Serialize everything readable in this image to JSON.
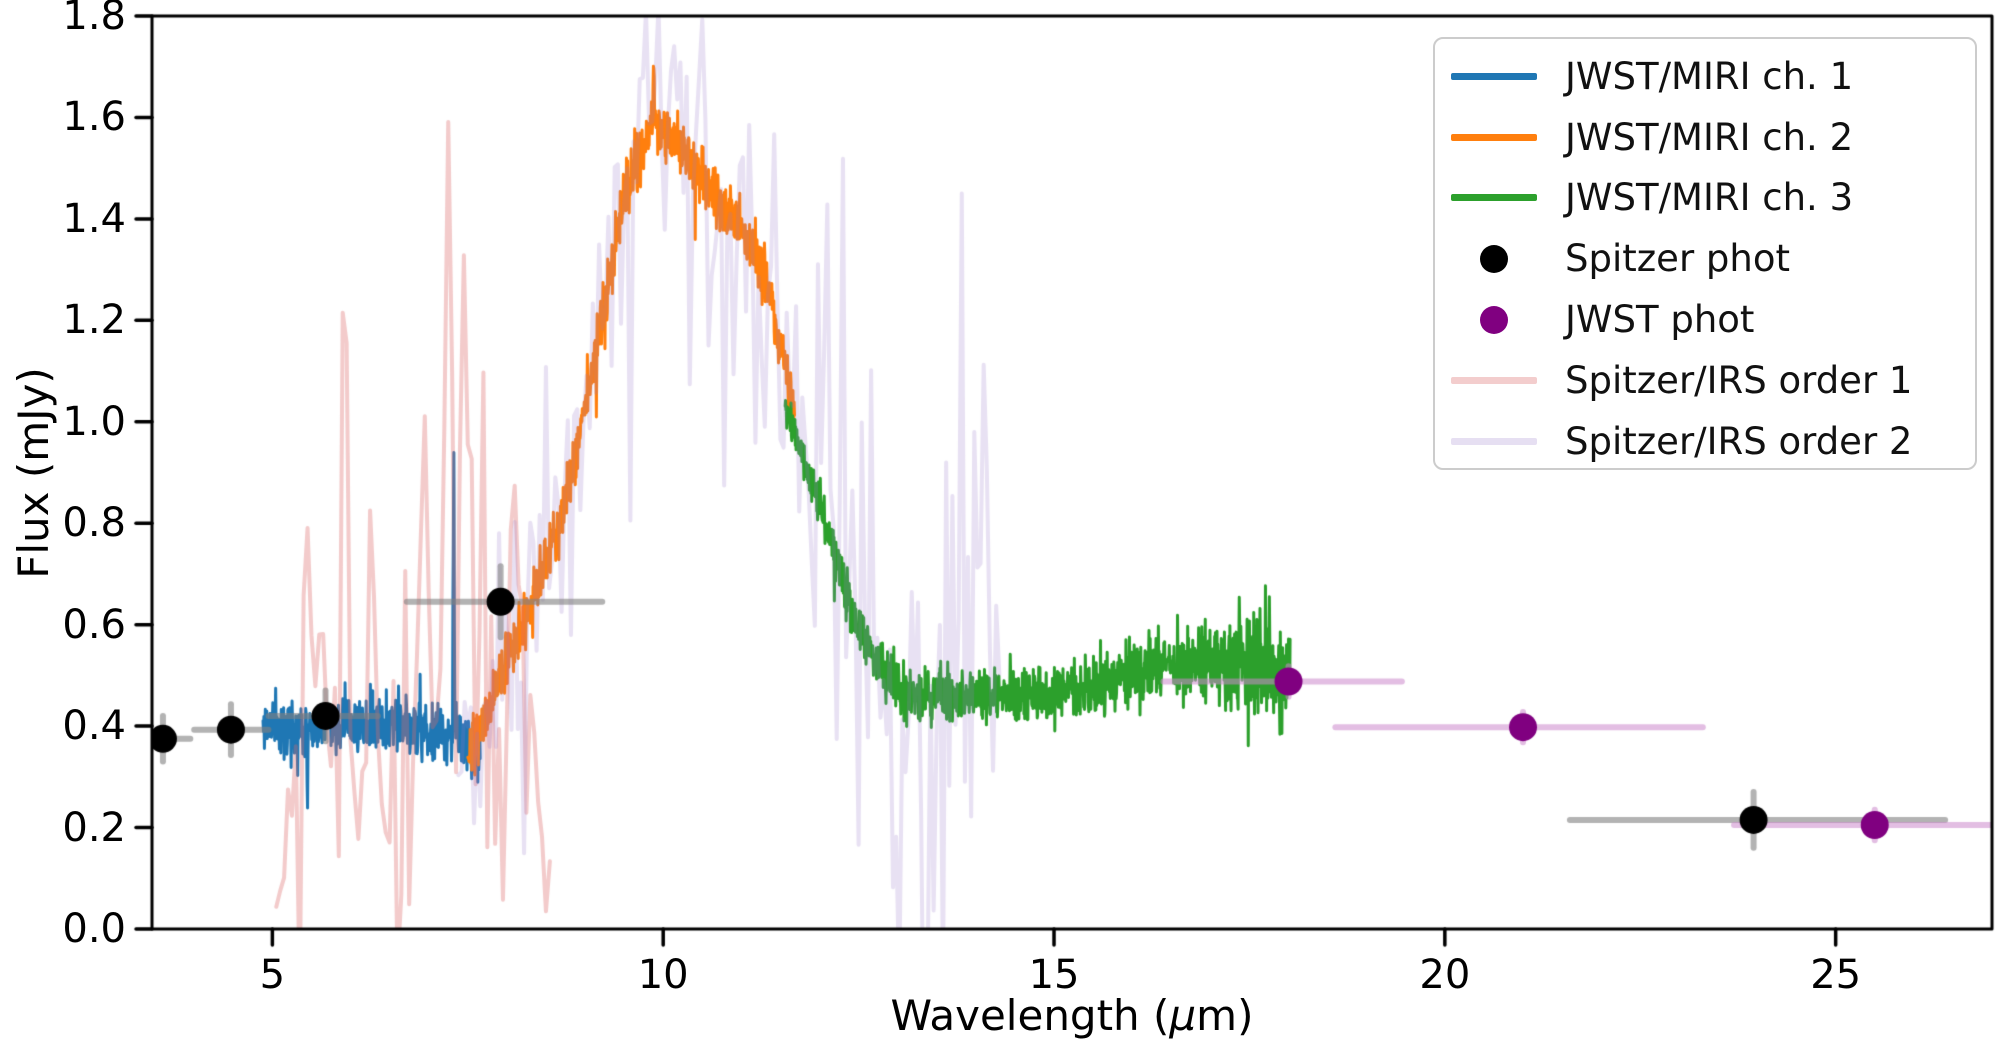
{
  "chart_data": {
    "type": "line",
    "title": "",
    "xlabel_prefix": "Wavelength (",
    "xlabel_mu": "μ",
    "xlabel_suffix": "m)",
    "ylabel": "Flux (mJy)",
    "xlim": [
      3.46,
      27.0
    ],
    "ylim": [
      0.0,
      1.8
    ],
    "grid": false,
    "legend_position": "upper right",
    "xticks": [
      "5",
      "10",
      "15",
      "20",
      "25"
    ],
    "xtick_values": [
      5,
      10,
      15,
      20,
      25
    ],
    "yticks": [
      "0.0",
      "0.2",
      "0.4",
      "0.6",
      "0.8",
      "1.0",
      "1.2",
      "1.4",
      "1.6",
      "1.8"
    ],
    "ytick_values": [
      0.0,
      0.2,
      0.4,
      0.6,
      0.8,
      1.0,
      1.2,
      1.4,
      1.6,
      1.8
    ],
    "spectra": [
      {
        "name": "JWST/MIRI ch. 1",
        "color": "#1f77b4",
        "range": [
          4.88,
          7.66
        ],
        "step": 0.006,
        "lw": 3,
        "seed": 11,
        "burst": 0.03,
        "anchors": [
          [
            4.88,
            0.4
          ],
          [
            5.5,
            0.405
          ],
          [
            6.0,
            0.4
          ],
          [
            6.5,
            0.405
          ],
          [
            7.0,
            0.39
          ],
          [
            7.3,
            0.385
          ],
          [
            7.5,
            0.37
          ],
          [
            7.66,
            0.345
          ]
        ],
        "sigma": [
          [
            4.88,
            0.045
          ],
          [
            6.0,
            0.042
          ],
          [
            6.8,
            0.05
          ],
          [
            7.2,
            0.055
          ],
          [
            7.66,
            0.06
          ]
        ],
        "spikes": [
          [
            7.32,
            0.66,
            0.014
          ],
          [
            5.45,
            -0.17,
            0.012
          ]
        ]
      },
      {
        "name": "JWST/MIRI ch. 2",
        "color": "#ff7f0e",
        "range": [
          7.5,
          11.68
        ],
        "step": 0.005,
        "lw": 3,
        "seed": 7,
        "burst": 0.02,
        "anchors": [
          [
            7.5,
            0.35
          ],
          [
            7.65,
            0.38
          ],
          [
            7.9,
            0.485
          ],
          [
            8.1,
            0.56
          ],
          [
            8.3,
            0.63
          ],
          [
            8.6,
            0.77
          ],
          [
            8.9,
            0.95
          ],
          [
            9.1,
            1.12
          ],
          [
            9.3,
            1.28
          ],
          [
            9.5,
            1.44
          ],
          [
            9.7,
            1.52
          ],
          [
            9.85,
            1.6
          ],
          [
            10.0,
            1.58
          ],
          [
            10.15,
            1.55
          ],
          [
            10.35,
            1.52
          ],
          [
            10.6,
            1.46
          ],
          [
            10.8,
            1.42
          ],
          [
            11.0,
            1.38
          ],
          [
            11.2,
            1.32
          ],
          [
            11.35,
            1.26
          ],
          [
            11.5,
            1.16
          ],
          [
            11.6,
            1.08
          ],
          [
            11.68,
            1.02
          ]
        ],
        "sigma": [
          [
            7.5,
            0.045
          ],
          [
            8.5,
            0.05
          ],
          [
            9.2,
            0.06
          ],
          [
            9.8,
            0.05
          ],
          [
            10.5,
            0.045
          ],
          [
            11.3,
            0.05
          ],
          [
            11.68,
            0.04
          ]
        ],
        "spikes": [
          [
            9.88,
            0.09,
            0.02
          ]
        ]
      },
      {
        "name": "JWST/MIRI ch. 3",
        "color": "#2ca02c",
        "range": [
          11.56,
          18.02
        ],
        "step": 0.005,
        "lw": 3,
        "seed": 5,
        "burst": 0.03,
        "anchors": [
          [
            11.56,
            1.02
          ],
          [
            11.7,
            0.97
          ],
          [
            11.9,
            0.88
          ],
          [
            12.1,
            0.79
          ],
          [
            12.35,
            0.66
          ],
          [
            12.6,
            0.56
          ],
          [
            12.85,
            0.5
          ],
          [
            13.1,
            0.465
          ],
          [
            13.6,
            0.455
          ],
          [
            14.2,
            0.46
          ],
          [
            14.8,
            0.465
          ],
          [
            15.4,
            0.475
          ],
          [
            16.0,
            0.5
          ],
          [
            16.5,
            0.52
          ],
          [
            17.0,
            0.525
          ],
          [
            17.5,
            0.52
          ],
          [
            18.02,
            0.5
          ]
        ],
        "sigma": [
          [
            11.56,
            0.035
          ],
          [
            12.5,
            0.04
          ],
          [
            13.2,
            0.045
          ],
          [
            15.0,
            0.045
          ],
          [
            16.2,
            0.055
          ],
          [
            17.0,
            0.07
          ],
          [
            17.6,
            0.09
          ],
          [
            18.02,
            0.095
          ]
        ],
        "spikes": []
      },
      {
        "name": "Spitzer/IRS order 1",
        "color": "rgba(222,105,105,0.35)",
        "range": [
          5.05,
          8.55
        ],
        "step": 0.05,
        "lw": 4,
        "seed": 3,
        "burst": 0.1,
        "anchors": [
          [
            5.05,
            0.2
          ],
          [
            5.5,
            0.3
          ],
          [
            6.0,
            0.35
          ],
          [
            6.6,
            0.3
          ],
          [
            7.0,
            0.45
          ],
          [
            7.5,
            0.5
          ],
          [
            8.0,
            0.45
          ],
          [
            8.55,
            0.3
          ]
        ],
        "sigma": [
          [
            5.05,
            0.22
          ],
          [
            5.8,
            0.28
          ],
          [
            6.5,
            0.3
          ],
          [
            7.2,
            0.38
          ],
          [
            7.8,
            0.35
          ],
          [
            8.55,
            0.3
          ]
        ],
        "spikes": [
          [
            5.45,
            0.6,
            0.08
          ],
          [
            5.93,
            0.75,
            0.07
          ],
          [
            6.25,
            0.55,
            0.07
          ],
          [
            6.9,
            0.75,
            0.08
          ],
          [
            7.25,
            1.05,
            0.07
          ],
          [
            7.45,
            0.9,
            0.07
          ],
          [
            8.15,
            0.5,
            0.08
          ]
        ]
      },
      {
        "name": "Spitzer/IRS order 2",
        "color": "rgba(150,120,200,0.22)",
        "range": [
          7.38,
          14.32
        ],
        "step": 0.04,
        "lw": 4,
        "seed": 9,
        "burst": 0.1,
        "anchors": [
          [
            7.38,
            0.3
          ],
          [
            7.8,
            0.4
          ],
          [
            8.2,
            0.55
          ],
          [
            8.6,
            0.75
          ],
          [
            9.0,
            1.0
          ],
          [
            9.4,
            1.3
          ],
          [
            9.7,
            1.5
          ],
          [
            10.0,
            1.55
          ],
          [
            10.3,
            1.5
          ],
          [
            10.7,
            1.4
          ],
          [
            11.0,
            1.35
          ],
          [
            11.4,
            1.2
          ],
          [
            11.8,
            0.95
          ],
          [
            12.2,
            0.7
          ],
          [
            12.6,
            0.55
          ],
          [
            13.0,
            0.5
          ],
          [
            13.4,
            0.45
          ],
          [
            13.9,
            0.5
          ],
          [
            14.32,
            0.5
          ]
        ],
        "sigma": [
          [
            7.38,
            0.25
          ],
          [
            8.5,
            0.3
          ],
          [
            9.5,
            0.35
          ],
          [
            10.0,
            0.4
          ],
          [
            10.8,
            0.35
          ],
          [
            11.6,
            0.4
          ],
          [
            12.3,
            0.45
          ],
          [
            13.0,
            0.5
          ],
          [
            13.8,
            0.45
          ],
          [
            14.32,
            0.35
          ]
        ],
        "spikes": [
          [
            9.9,
            0.5,
            0.08
          ],
          [
            10.15,
            0.45,
            0.07
          ],
          [
            12.1,
            0.75,
            0.07
          ],
          [
            12.55,
            0.6,
            0.06
          ],
          [
            13.35,
            -0.85,
            0.07
          ],
          [
            14.1,
            1.0,
            0.07
          ]
        ]
      }
    ],
    "photometry": [
      {
        "name": "Spitzer phot",
        "marker_color": "#000000",
        "errorbar_color": "rgba(128,128,128,0.6)",
        "marker_radius": 14,
        "points": [
          {
            "x": 3.6,
            "y": 0.375,
            "xerr_lo": 0.25,
            "xerr_hi": 0.35,
            "yerr": 0.045
          },
          {
            "x": 4.47,
            "y": 0.393,
            "xerr_lo": 0.47,
            "xerr_hi": 0.48,
            "yerr": 0.05
          },
          {
            "x": 5.68,
            "y": 0.42,
            "xerr_lo": 0.73,
            "xerr_hi": 0.67,
            "yerr": 0.05
          },
          {
            "x": 7.92,
            "y": 0.645,
            "xerr_lo": 1.2,
            "xerr_hi": 1.3,
            "yerr": 0.07
          },
          {
            "x": 23.95,
            "y": 0.215,
            "xerr_lo": 2.35,
            "xerr_hi": 2.45,
            "yerr": 0.055
          }
        ]
      },
      {
        "name": "JWST phot",
        "marker_color": "#800080",
        "errorbar_color": "rgba(204,136,204,0.55)",
        "marker_radius": 14,
        "points": [
          {
            "x": 18.0,
            "y": 0.488,
            "xerr_lo": 1.6,
            "xerr_hi": 1.45,
            "yerr": 0.03
          },
          {
            "x": 21.0,
            "y": 0.398,
            "xerr_lo": 2.4,
            "xerr_hi": 2.3,
            "yerr": 0.03
          },
          {
            "x": 25.5,
            "y": 0.205,
            "xerr_lo": 1.8,
            "xerr_hi": 1.6,
            "yerr": 0.03
          }
        ]
      }
    ],
    "legend": [
      {
        "label": "JWST/MIRI ch. 1",
        "type": "line",
        "color": "#1f77b4"
      },
      {
        "label": "JWST/MIRI ch. 2",
        "type": "line",
        "color": "#ff7f0e"
      },
      {
        "label": "JWST/MIRI ch. 3",
        "type": "line",
        "color": "#2ca02c"
      },
      {
        "label": "Spitzer phot",
        "type": "marker",
        "color": "#000000"
      },
      {
        "label": "JWST phot",
        "type": "marker",
        "color": "#800080"
      },
      {
        "label": "Spitzer/IRS order 1",
        "type": "line",
        "color": "#f3cdcd"
      },
      {
        "label": "Spitzer/IRS order 2",
        "type": "line",
        "color": "#e6dff2"
      }
    ]
  }
}
